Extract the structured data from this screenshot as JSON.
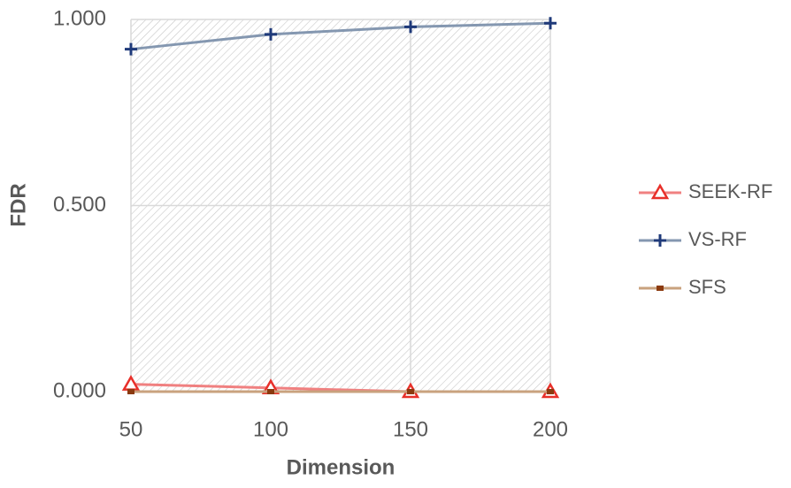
{
  "chart_data": {
    "type": "line",
    "x": [
      50,
      100,
      150,
      200
    ],
    "xlim": [
      50,
      200
    ],
    "xticks": [
      50,
      100,
      150,
      200
    ],
    "ylim": [
      0,
      1
    ],
    "yticks": [
      {
        "value": 0,
        "label": "0.000"
      },
      {
        "value": 0.5,
        "label": "0.500"
      },
      {
        "value": 1,
        "label": "1.000"
      }
    ],
    "x_label": "Dimension",
    "y_label": "FDR",
    "grid": true,
    "legend": "right",
    "series": [
      {
        "name": "SEEK-RF",
        "color": "#f08080",
        "marker_color": "#e8302a",
        "marker": "triangle",
        "values": [
          0.02,
          0.01,
          0.0,
          0.0
        ]
      },
      {
        "name": "VS-RF",
        "color": "#8497b0",
        "marker_color": "#1f3a7a",
        "marker": "plus",
        "values": [
          0.92,
          0.96,
          0.98,
          0.99
        ]
      },
      {
        "name": "SFS",
        "color": "#c9a27e",
        "marker_color": "#8b3a0f",
        "marker": "square",
        "values": [
          0.0,
          0.0,
          0.0,
          0.0
        ]
      }
    ]
  }
}
